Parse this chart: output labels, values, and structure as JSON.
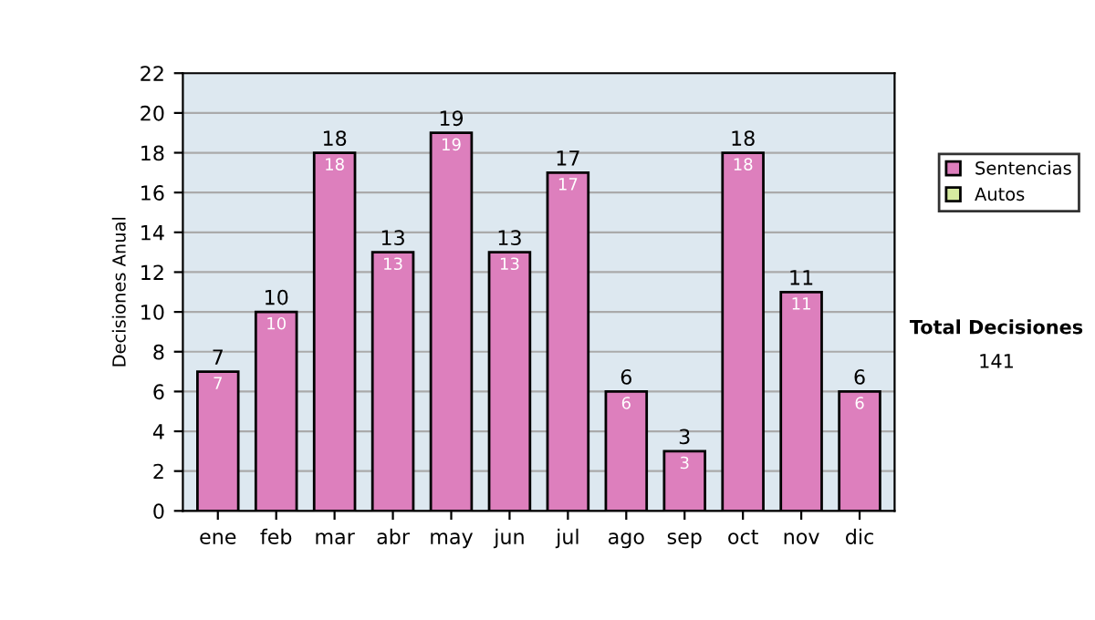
{
  "chart_data": {
    "type": "bar",
    "stacked": true,
    "ylabel": "Decisiones Anual",
    "categories": [
      "ene",
      "feb",
      "mar",
      "abr",
      "may",
      "jun",
      "jul",
      "ago",
      "sep",
      "oct",
      "nov",
      "dic"
    ],
    "series": [
      {
        "name": "Sentencias",
        "color": "#dd7fbd",
        "values": [
          7,
          10,
          18,
          13,
          19,
          13,
          17,
          6,
          3,
          18,
          11,
          6
        ],
        "value_labels": [
          "7",
          "10",
          "18",
          "13",
          "19",
          "13",
          "17",
          "6",
          "3",
          "18",
          "11",
          "6"
        ]
      },
      {
        "name": "Autos",
        "color": "#d6eba0",
        "values": [
          null,
          null,
          null,
          null,
          null,
          null,
          null,
          null,
          null,
          null,
          null,
          null
        ]
      }
    ],
    "totals": [
      "7",
      "10",
      "18",
      "13",
      "19",
      "13",
      "17",
      "6",
      "3",
      "18",
      "11",
      "6"
    ],
    "ylim": [
      0,
      22
    ],
    "yticks": [
      0,
      2,
      4,
      6,
      8,
      10,
      12,
      14,
      16,
      18,
      20,
      22
    ],
    "grid": "y",
    "legend": "right",
    "annotations": [
      "Total Decisiones",
      "141"
    ]
  }
}
